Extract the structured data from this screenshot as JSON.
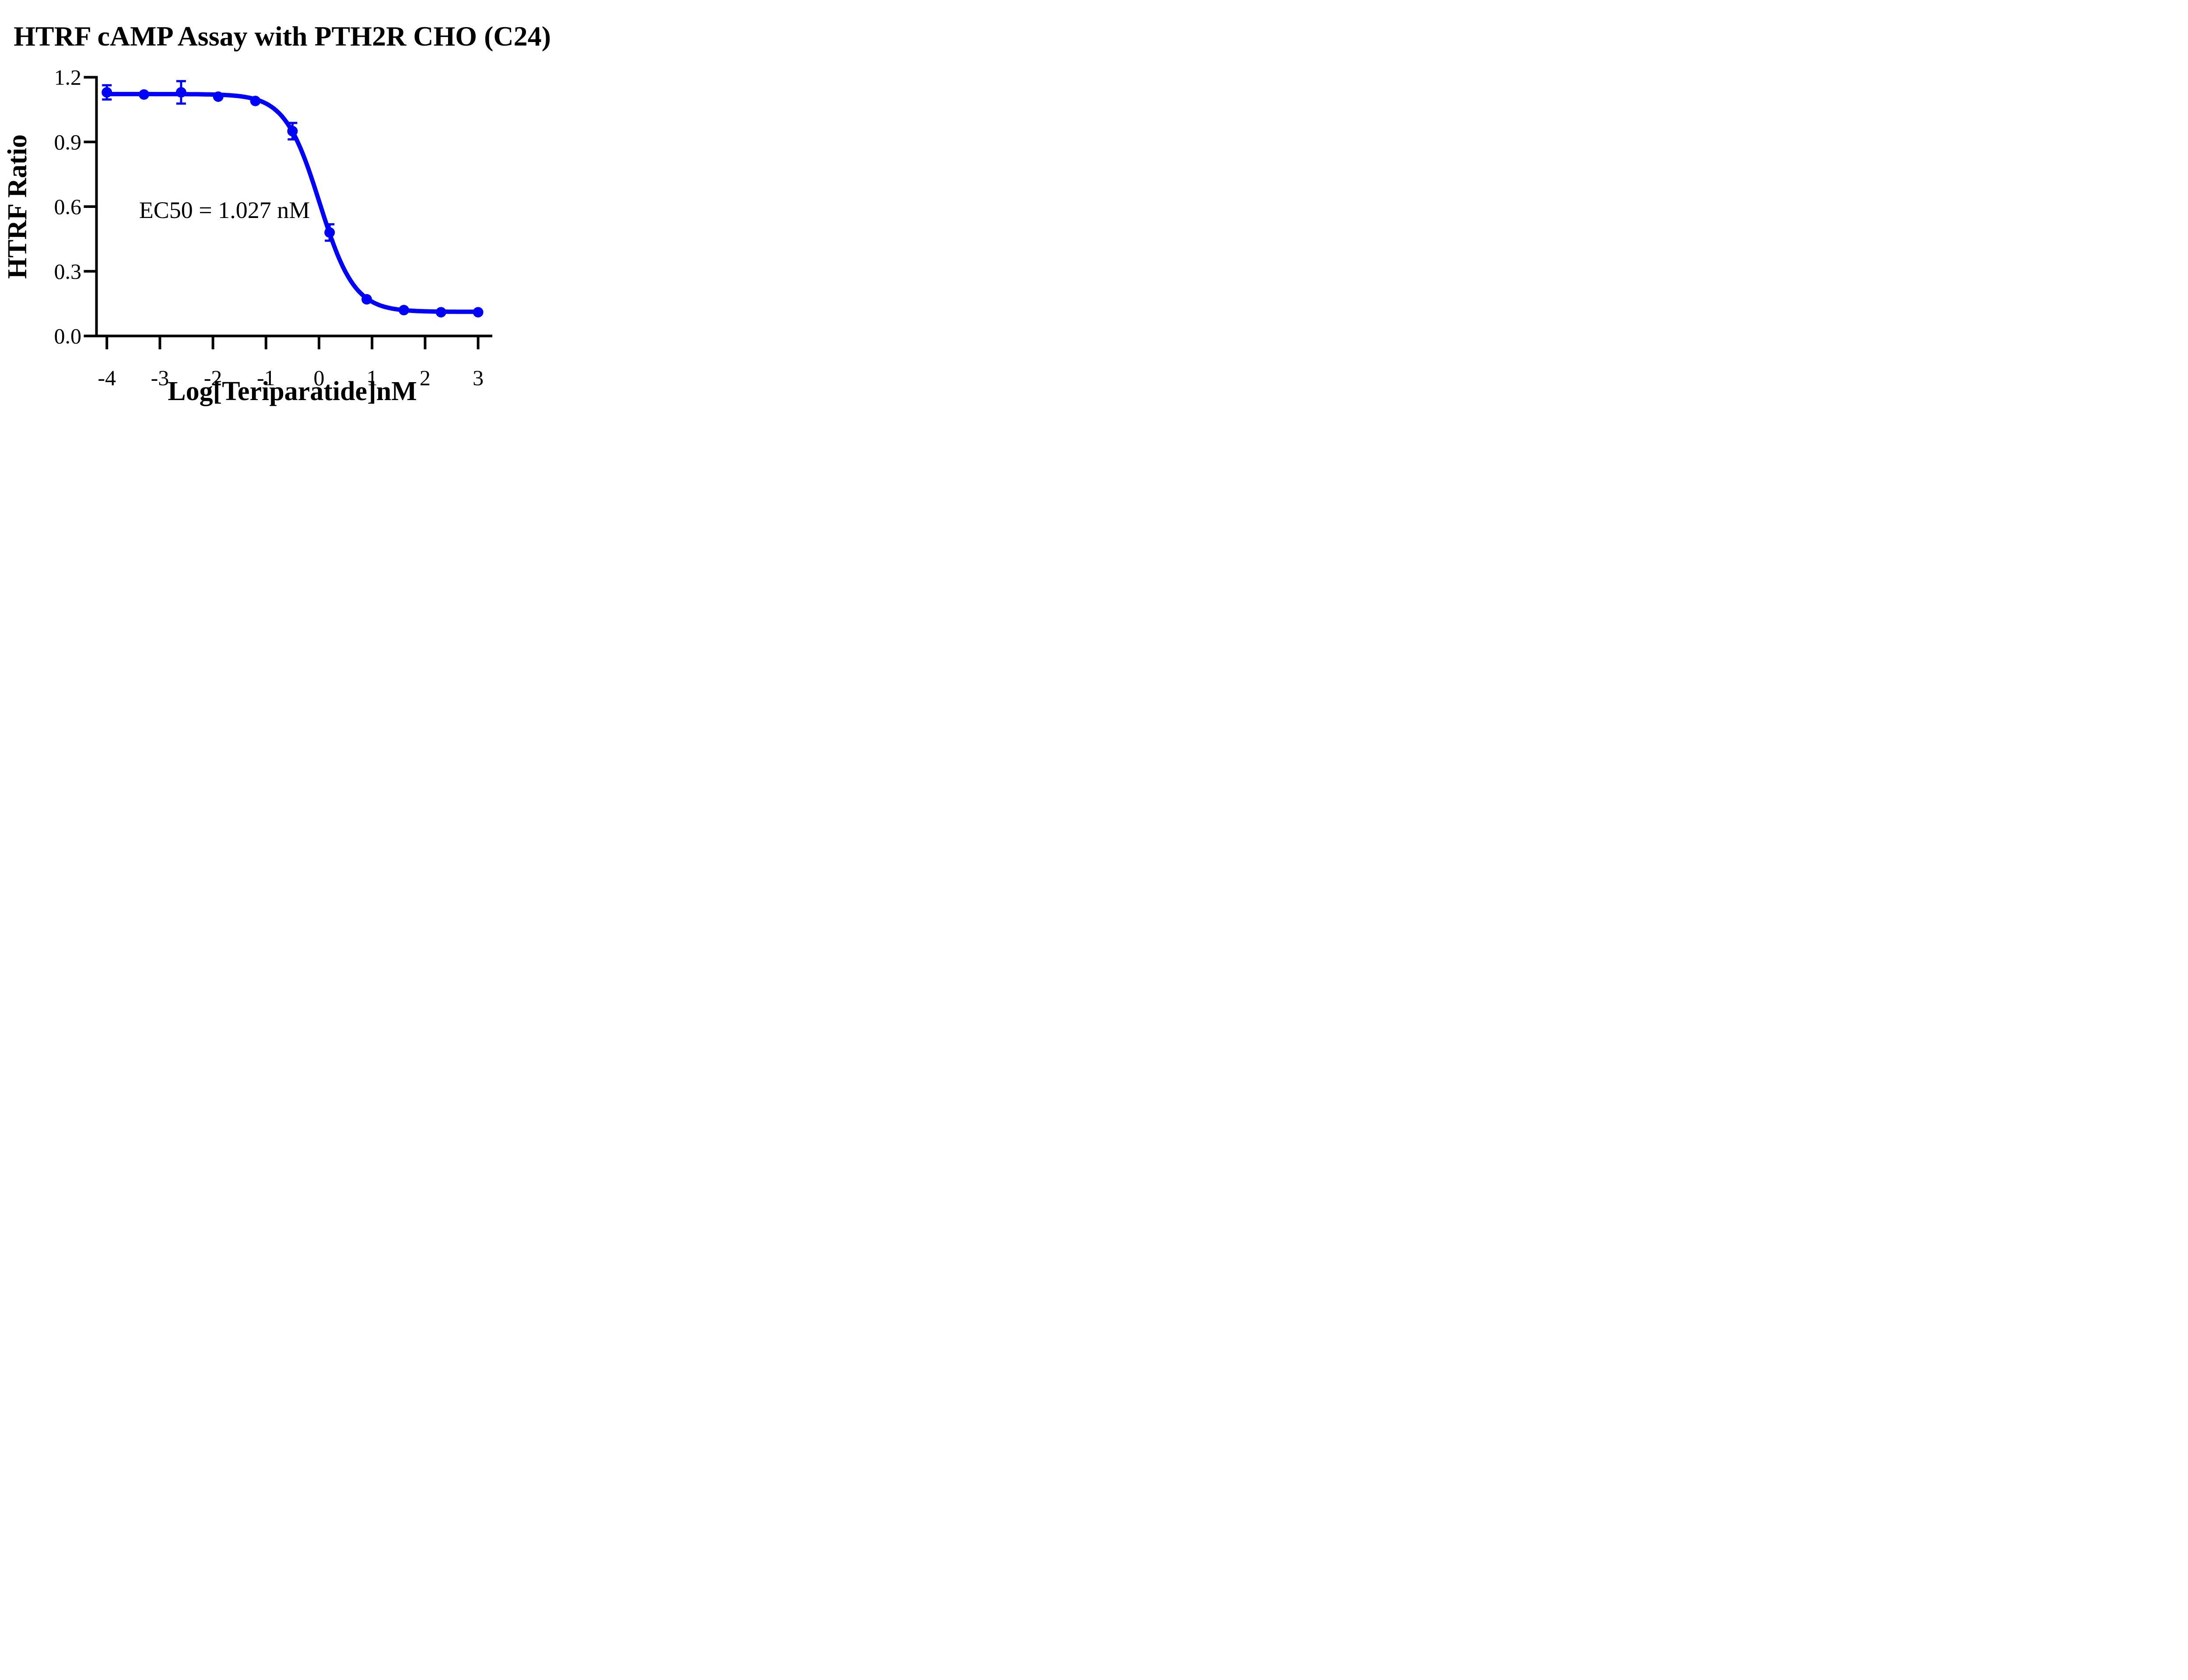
{
  "chart_data": {
    "type": "scatter",
    "title": "HTRF cAMP Assay with PTH2R CHO (C24)",
    "xlabel": "Log[Teriparatide]nM",
    "ylabel": "HTRF Ratio",
    "annotation": "EC50 = 1.027 nM",
    "ec50_nM": 1.027,
    "grid": false,
    "legend": "none",
    "background_color": "#FFFFFF",
    "axis_color": "#000000",
    "series_color": "#0000FF",
    "xlim": [
      -4.2,
      3.27
    ],
    "ylim": [
      0.0,
      1.2
    ],
    "x_ticks": [
      {
        "v": -4,
        "label": "-4"
      },
      {
        "v": -3,
        "label": "-3"
      },
      {
        "v": -2,
        "label": "-2"
      },
      {
        "v": -1,
        "label": "-1"
      },
      {
        "v": 0,
        "label": "0"
      },
      {
        "v": 1,
        "label": "1"
      },
      {
        "v": 2,
        "label": "2"
      },
      {
        "v": 3,
        "label": "3"
      }
    ],
    "y_ticks": [
      {
        "v": 0.0,
        "label": "0.0"
      },
      {
        "v": 0.3,
        "label": "0.3"
      },
      {
        "v": 0.6,
        "label": "0.6"
      },
      {
        "v": 0.9,
        "label": "0.9"
      },
      {
        "v": 1.2,
        "label": "1.2"
      }
    ],
    "points": [
      {
        "x": -4.0,
        "y": 1.13,
        "err": 0.033
      },
      {
        "x": -3.3,
        "y": 1.12,
        "err": null
      },
      {
        "x": -2.6,
        "y": 1.13,
        "err": 0.052
      },
      {
        "x": -1.9,
        "y": 1.11,
        "err": null
      },
      {
        "x": -1.2,
        "y": 1.09,
        "err": null
      },
      {
        "x": -0.5,
        "y": 0.95,
        "err": 0.038
      },
      {
        "x": 0.2,
        "y": 0.48,
        "err": 0.038
      },
      {
        "x": 0.9,
        "y": 0.17,
        "err": null
      },
      {
        "x": 1.6,
        "y": 0.12,
        "err": null
      },
      {
        "x": 2.3,
        "y": 0.11,
        "err": null
      },
      {
        "x": 3.0,
        "y": 0.11,
        "err": null
      }
    ],
    "fit_curve": {
      "model": "four-parameter logistic (descending)",
      "top": 1.122,
      "bottom": 0.112,
      "log_ec50": 0.0116,
      "hill": 1.33,
      "x_start": -4.0,
      "x_end": 3.0
    }
  }
}
